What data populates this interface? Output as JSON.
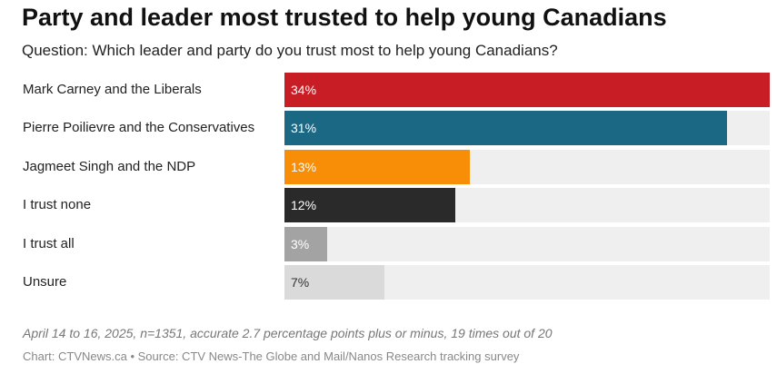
{
  "chart_data": {
    "type": "bar",
    "orientation": "horizontal",
    "title": "Party and leader most trusted to help young Canadians",
    "subtitle": "Question: Which leader and party do you trust most to help young Canadians?",
    "xlim": [
      0,
      34
    ],
    "categories": [
      "Mark Carney and the Liberals",
      "Pierre Poilievre and the Conservatives",
      "Jagmeet Singh and the NDP",
      "I trust none",
      "I trust all",
      "Unsure"
    ],
    "values": [
      34,
      31,
      13,
      12,
      3,
      7
    ],
    "value_labels": [
      "34%",
      "31%",
      "13%",
      "12%",
      "3%",
      "7%"
    ],
    "colors": [
      "#c81d25",
      "#1b6884",
      "#f88d07",
      "#2b2a2a",
      "#a3a3a3",
      "#dadada"
    ],
    "label_colors": [
      "#ffffff",
      "#ffffff",
      "#ffffff",
      "#ffffff",
      "#ffffff",
      "#333333"
    ],
    "track_color": "#efefef",
    "footnote": "April 14 to 16, 2025, n=1351, accurate 2.7 percentage points plus or minus, 19 times out of 20",
    "credit": "Chart: CTVNews.ca • Source: CTV News-The Globe and Mail/Nanos Research tracking survey"
  }
}
